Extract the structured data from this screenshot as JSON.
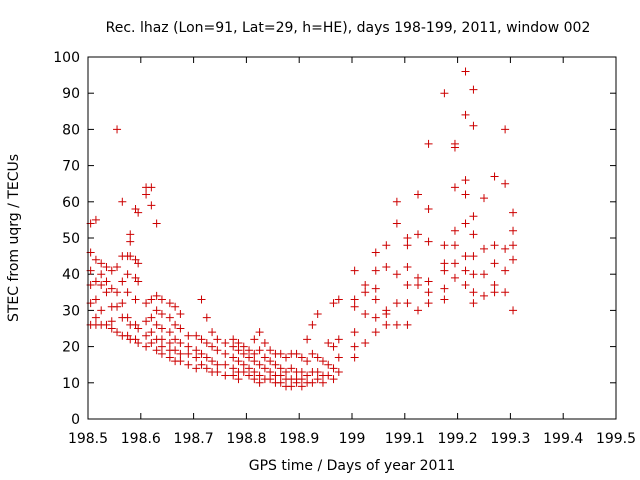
{
  "chart_data": {
    "type": "scatter",
    "title": "Rec. lhaz (Lon=91, Lat=29, h=HE), days 198-199, 2011, window 002",
    "xlabel": "GPS time / Days of year 2011",
    "ylabel": "STEC from uqrg / TECUs",
    "xlim": [
      198.5,
      199.5
    ],
    "ylim": [
      0,
      100
    ],
    "xticks": [
      198.5,
      198.6,
      198.7,
      198.8,
      198.9,
      199,
      199.1,
      199.2,
      199.3,
      199.4,
      199.5
    ],
    "xtick_labels": [
      "198.5",
      "198.6",
      "198.7",
      "198.8",
      "198.9",
      "199",
      "199.1",
      "199.2",
      "199.3",
      "199.4",
      "199.5"
    ],
    "yticks": [
      0,
      10,
      20,
      30,
      40,
      50,
      60,
      70,
      80,
      90,
      100
    ],
    "ytick_labels": [
      "0",
      "10",
      "20",
      "30",
      "40",
      "50",
      "60",
      "70",
      "80",
      "90",
      "100"
    ],
    "marker": "+",
    "color": "#cc0000",
    "points": [
      [
        198.505,
        54
      ],
      [
        198.505,
        46
      ],
      [
        198.505,
        41
      ],
      [
        198.505,
        37
      ],
      [
        198.505,
        32
      ],
      [
        198.505,
        26
      ],
      [
        198.515,
        55
      ],
      [
        198.515,
        44
      ],
      [
        198.515,
        38
      ],
      [
        198.515,
        33
      ],
      [
        198.515,
        28
      ],
      [
        198.515,
        26
      ],
      [
        198.525,
        43
      ],
      [
        198.525,
        40
      ],
      [
        198.525,
        37
      ],
      [
        198.525,
        30
      ],
      [
        198.525,
        26
      ],
      [
        198.535,
        42
      ],
      [
        198.535,
        38
      ],
      [
        198.535,
        35
      ],
      [
        198.535,
        26
      ],
      [
        198.545,
        41
      ],
      [
        198.545,
        36
      ],
      [
        198.545,
        31
      ],
      [
        198.545,
        27
      ],
      [
        198.545,
        25
      ],
      [
        198.555,
        80
      ],
      [
        198.555,
        42
      ],
      [
        198.555,
        35
      ],
      [
        198.555,
        31
      ],
      [
        198.555,
        24
      ],
      [
        198.565,
        60
      ],
      [
        198.565,
        45
      ],
      [
        198.565,
        38
      ],
      [
        198.565,
        32
      ],
      [
        198.565,
        28
      ],
      [
        198.565,
        23
      ],
      [
        198.575,
        45
      ],
      [
        198.575,
        40
      ],
      [
        198.575,
        35
      ],
      [
        198.575,
        28
      ],
      [
        198.575,
        23
      ],
      [
        198.58,
        51
      ],
      [
        198.58,
        49
      ],
      [
        198.58,
        45
      ],
      [
        198.58,
        26
      ],
      [
        198.58,
        22
      ],
      [
        198.59,
        58
      ],
      [
        198.59,
        44
      ],
      [
        198.59,
        39
      ],
      [
        198.59,
        33
      ],
      [
        198.59,
        26
      ],
      [
        198.59,
        22
      ],
      [
        198.595,
        57
      ],
      [
        198.595,
        43
      ],
      [
        198.595,
        38
      ],
      [
        198.595,
        25
      ],
      [
        198.595,
        21
      ],
      [
        198.61,
        64
      ],
      [
        198.61,
        62
      ],
      [
        198.61,
        32
      ],
      [
        198.61,
        27
      ],
      [
        198.61,
        23
      ],
      [
        198.61,
        20
      ],
      [
        198.62,
        64
      ],
      [
        198.62,
        59
      ],
      [
        198.62,
        33
      ],
      [
        198.62,
        28
      ],
      [
        198.62,
        24
      ],
      [
        198.62,
        21
      ],
      [
        198.63,
        54
      ],
      [
        198.63,
        34
      ],
      [
        198.63,
        30
      ],
      [
        198.63,
        26
      ],
      [
        198.63,
        22
      ],
      [
        198.63,
        19
      ],
      [
        198.64,
        33
      ],
      [
        198.64,
        29
      ],
      [
        198.64,
        25
      ],
      [
        198.64,
        22
      ],
      [
        198.64,
        20
      ],
      [
        198.64,
        18
      ],
      [
        198.655,
        32
      ],
      [
        198.655,
        28
      ],
      [
        198.655,
        24
      ],
      [
        198.655,
        21
      ],
      [
        198.655,
        19
      ],
      [
        198.655,
        17
      ],
      [
        198.665,
        31
      ],
      [
        198.665,
        26
      ],
      [
        198.665,
        22
      ],
      [
        198.665,
        19
      ],
      [
        198.665,
        16
      ],
      [
        198.675,
        29
      ],
      [
        198.675,
        25
      ],
      [
        198.675,
        21
      ],
      [
        198.675,
        18
      ],
      [
        198.675,
        16
      ],
      [
        198.69,
        23
      ],
      [
        198.69,
        20
      ],
      [
        198.69,
        18
      ],
      [
        198.69,
        15
      ],
      [
        198.705,
        23
      ],
      [
        198.705,
        19
      ],
      [
        198.705,
        17
      ],
      [
        198.705,
        14
      ],
      [
        198.715,
        33
      ],
      [
        198.715,
        22
      ],
      [
        198.715,
        18
      ],
      [
        198.715,
        15
      ],
      [
        198.725,
        28
      ],
      [
        198.725,
        21
      ],
      [
        198.725,
        17
      ],
      [
        198.725,
        14
      ],
      [
        198.735,
        24
      ],
      [
        198.735,
        20
      ],
      [
        198.735,
        16
      ],
      [
        198.735,
        13
      ],
      [
        198.745,
        22
      ],
      [
        198.745,
        19
      ],
      [
        198.745,
        15
      ],
      [
        198.745,
        13
      ],
      [
        198.76,
        21
      ],
      [
        198.76,
        18
      ],
      [
        198.76,
        15
      ],
      [
        198.76,
        12
      ],
      [
        198.775,
        22
      ],
      [
        198.775,
        20
      ],
      [
        198.775,
        17
      ],
      [
        198.775,
        14
      ],
      [
        198.775,
        12
      ],
      [
        198.785,
        21
      ],
      [
        198.785,
        19
      ],
      [
        198.785,
        16
      ],
      [
        198.785,
        13
      ],
      [
        198.785,
        11
      ],
      [
        198.795,
        20
      ],
      [
        198.795,
        18
      ],
      [
        198.795,
        15
      ],
      [
        198.795,
        13
      ],
      [
        198.805,
        19
      ],
      [
        198.805,
        17
      ],
      [
        198.805,
        14
      ],
      [
        198.805,
        12
      ],
      [
        198.815,
        22
      ],
      [
        198.815,
        18
      ],
      [
        198.815,
        16
      ],
      [
        198.815,
        13
      ],
      [
        198.815,
        11
      ],
      [
        198.825,
        24
      ],
      [
        198.825,
        19
      ],
      [
        198.825,
        15
      ],
      [
        198.825,
        12
      ],
      [
        198.825,
        10
      ],
      [
        198.835,
        21
      ],
      [
        198.835,
        17
      ],
      [
        198.835,
        14
      ],
      [
        198.835,
        11
      ],
      [
        198.845,
        19
      ],
      [
        198.845,
        16
      ],
      [
        198.845,
        13
      ],
      [
        198.845,
        11
      ],
      [
        198.855,
        18
      ],
      [
        198.855,
        15
      ],
      [
        198.855,
        12
      ],
      [
        198.855,
        10
      ],
      [
        198.865,
        18
      ],
      [
        198.865,
        14
      ],
      [
        198.865,
        12
      ],
      [
        198.865,
        10
      ],
      [
        198.875,
        17
      ],
      [
        198.875,
        13
      ],
      [
        198.875,
        11
      ],
      [
        198.875,
        9
      ],
      [
        198.885,
        18
      ],
      [
        198.885,
        14
      ],
      [
        198.885,
        11
      ],
      [
        198.885,
        9
      ],
      [
        198.895,
        18
      ],
      [
        198.895,
        13
      ],
      [
        198.895,
        11
      ],
      [
        198.895,
        10
      ],
      [
        198.905,
        17
      ],
      [
        198.905,
        13
      ],
      [
        198.905,
        11
      ],
      [
        198.905,
        9
      ],
      [
        198.915,
        22
      ],
      [
        198.915,
        16
      ],
      [
        198.915,
        12
      ],
      [
        198.915,
        10
      ],
      [
        198.925,
        26
      ],
      [
        198.925,
        18
      ],
      [
        198.925,
        13
      ],
      [
        198.925,
        10
      ],
      [
        198.935,
        29
      ],
      [
        198.935,
        17
      ],
      [
        198.935,
        13
      ],
      [
        198.935,
        11
      ],
      [
        198.945,
        16
      ],
      [
        198.945,
        12
      ],
      [
        198.945,
        10
      ],
      [
        198.955,
        21
      ],
      [
        198.955,
        15
      ],
      [
        198.955,
        12
      ],
      [
        198.965,
        32
      ],
      [
        198.965,
        20
      ],
      [
        198.965,
        14
      ],
      [
        198.965,
        11
      ],
      [
        198.975,
        33
      ],
      [
        198.975,
        22
      ],
      [
        198.975,
        17
      ],
      [
        198.975,
        13
      ],
      [
        199.005,
        41
      ],
      [
        199.005,
        33
      ],
      [
        199.005,
        31
      ],
      [
        199.005,
        24
      ],
      [
        199.005,
        20
      ],
      [
        199.005,
        17
      ],
      [
        199.025,
        37
      ],
      [
        199.025,
        35
      ],
      [
        199.025,
        29
      ],
      [
        199.025,
        21
      ],
      [
        199.045,
        46
      ],
      [
        199.045,
        41
      ],
      [
        199.045,
        36
      ],
      [
        199.045,
        33
      ],
      [
        199.045,
        28
      ],
      [
        199.045,
        24
      ],
      [
        199.065,
        48
      ],
      [
        199.065,
        42
      ],
      [
        199.065,
        30
      ],
      [
        199.065,
        29
      ],
      [
        199.065,
        26
      ],
      [
        199.085,
        60
      ],
      [
        199.085,
        54
      ],
      [
        199.085,
        40
      ],
      [
        199.085,
        32
      ],
      [
        199.085,
        26
      ],
      [
        199.105,
        50
      ],
      [
        199.105,
        48
      ],
      [
        199.105,
        42
      ],
      [
        199.105,
        37
      ],
      [
        199.105,
        32
      ],
      [
        199.105,
        26
      ],
      [
        199.125,
        62
      ],
      [
        199.125,
        51
      ],
      [
        199.125,
        39
      ],
      [
        199.125,
        37
      ],
      [
        199.125,
        30
      ],
      [
        199.145,
        76
      ],
      [
        199.145,
        58
      ],
      [
        199.145,
        49
      ],
      [
        199.145,
        38
      ],
      [
        199.145,
        35
      ],
      [
        199.145,
        32
      ],
      [
        199.175,
        90
      ],
      [
        199.175,
        48
      ],
      [
        199.175,
        43
      ],
      [
        199.175,
        41
      ],
      [
        199.175,
        36
      ],
      [
        199.175,
        33
      ],
      [
        199.195,
        76
      ],
      [
        199.195,
        75
      ],
      [
        199.195,
        64
      ],
      [
        199.195,
        52
      ],
      [
        199.195,
        48
      ],
      [
        199.195,
        43
      ],
      [
        199.195,
        39
      ],
      [
        199.215,
        96
      ],
      [
        199.215,
        84
      ],
      [
        199.215,
        66
      ],
      [
        199.215,
        62
      ],
      [
        199.215,
        54
      ],
      [
        199.215,
        45
      ],
      [
        199.215,
        41
      ],
      [
        199.215,
        37
      ],
      [
        199.23,
        91
      ],
      [
        199.23,
        81
      ],
      [
        199.23,
        56
      ],
      [
        199.23,
        51
      ],
      [
        199.23,
        45
      ],
      [
        199.23,
        40
      ],
      [
        199.23,
        35
      ],
      [
        199.23,
        32
      ],
      [
        199.25,
        61
      ],
      [
        199.25,
        47
      ],
      [
        199.25,
        40
      ],
      [
        199.25,
        34
      ],
      [
        199.27,
        67
      ],
      [
        199.27,
        48
      ],
      [
        199.27,
        43
      ],
      [
        199.27,
        37
      ],
      [
        199.27,
        35
      ],
      [
        199.29,
        80
      ],
      [
        199.29,
        65
      ],
      [
        199.29,
        47
      ],
      [
        199.29,
        41
      ],
      [
        199.29,
        35
      ],
      [
        199.305,
        57
      ],
      [
        199.305,
        52
      ],
      [
        199.305,
        48
      ],
      [
        199.305,
        44
      ],
      [
        199.305,
        30
      ]
    ]
  }
}
